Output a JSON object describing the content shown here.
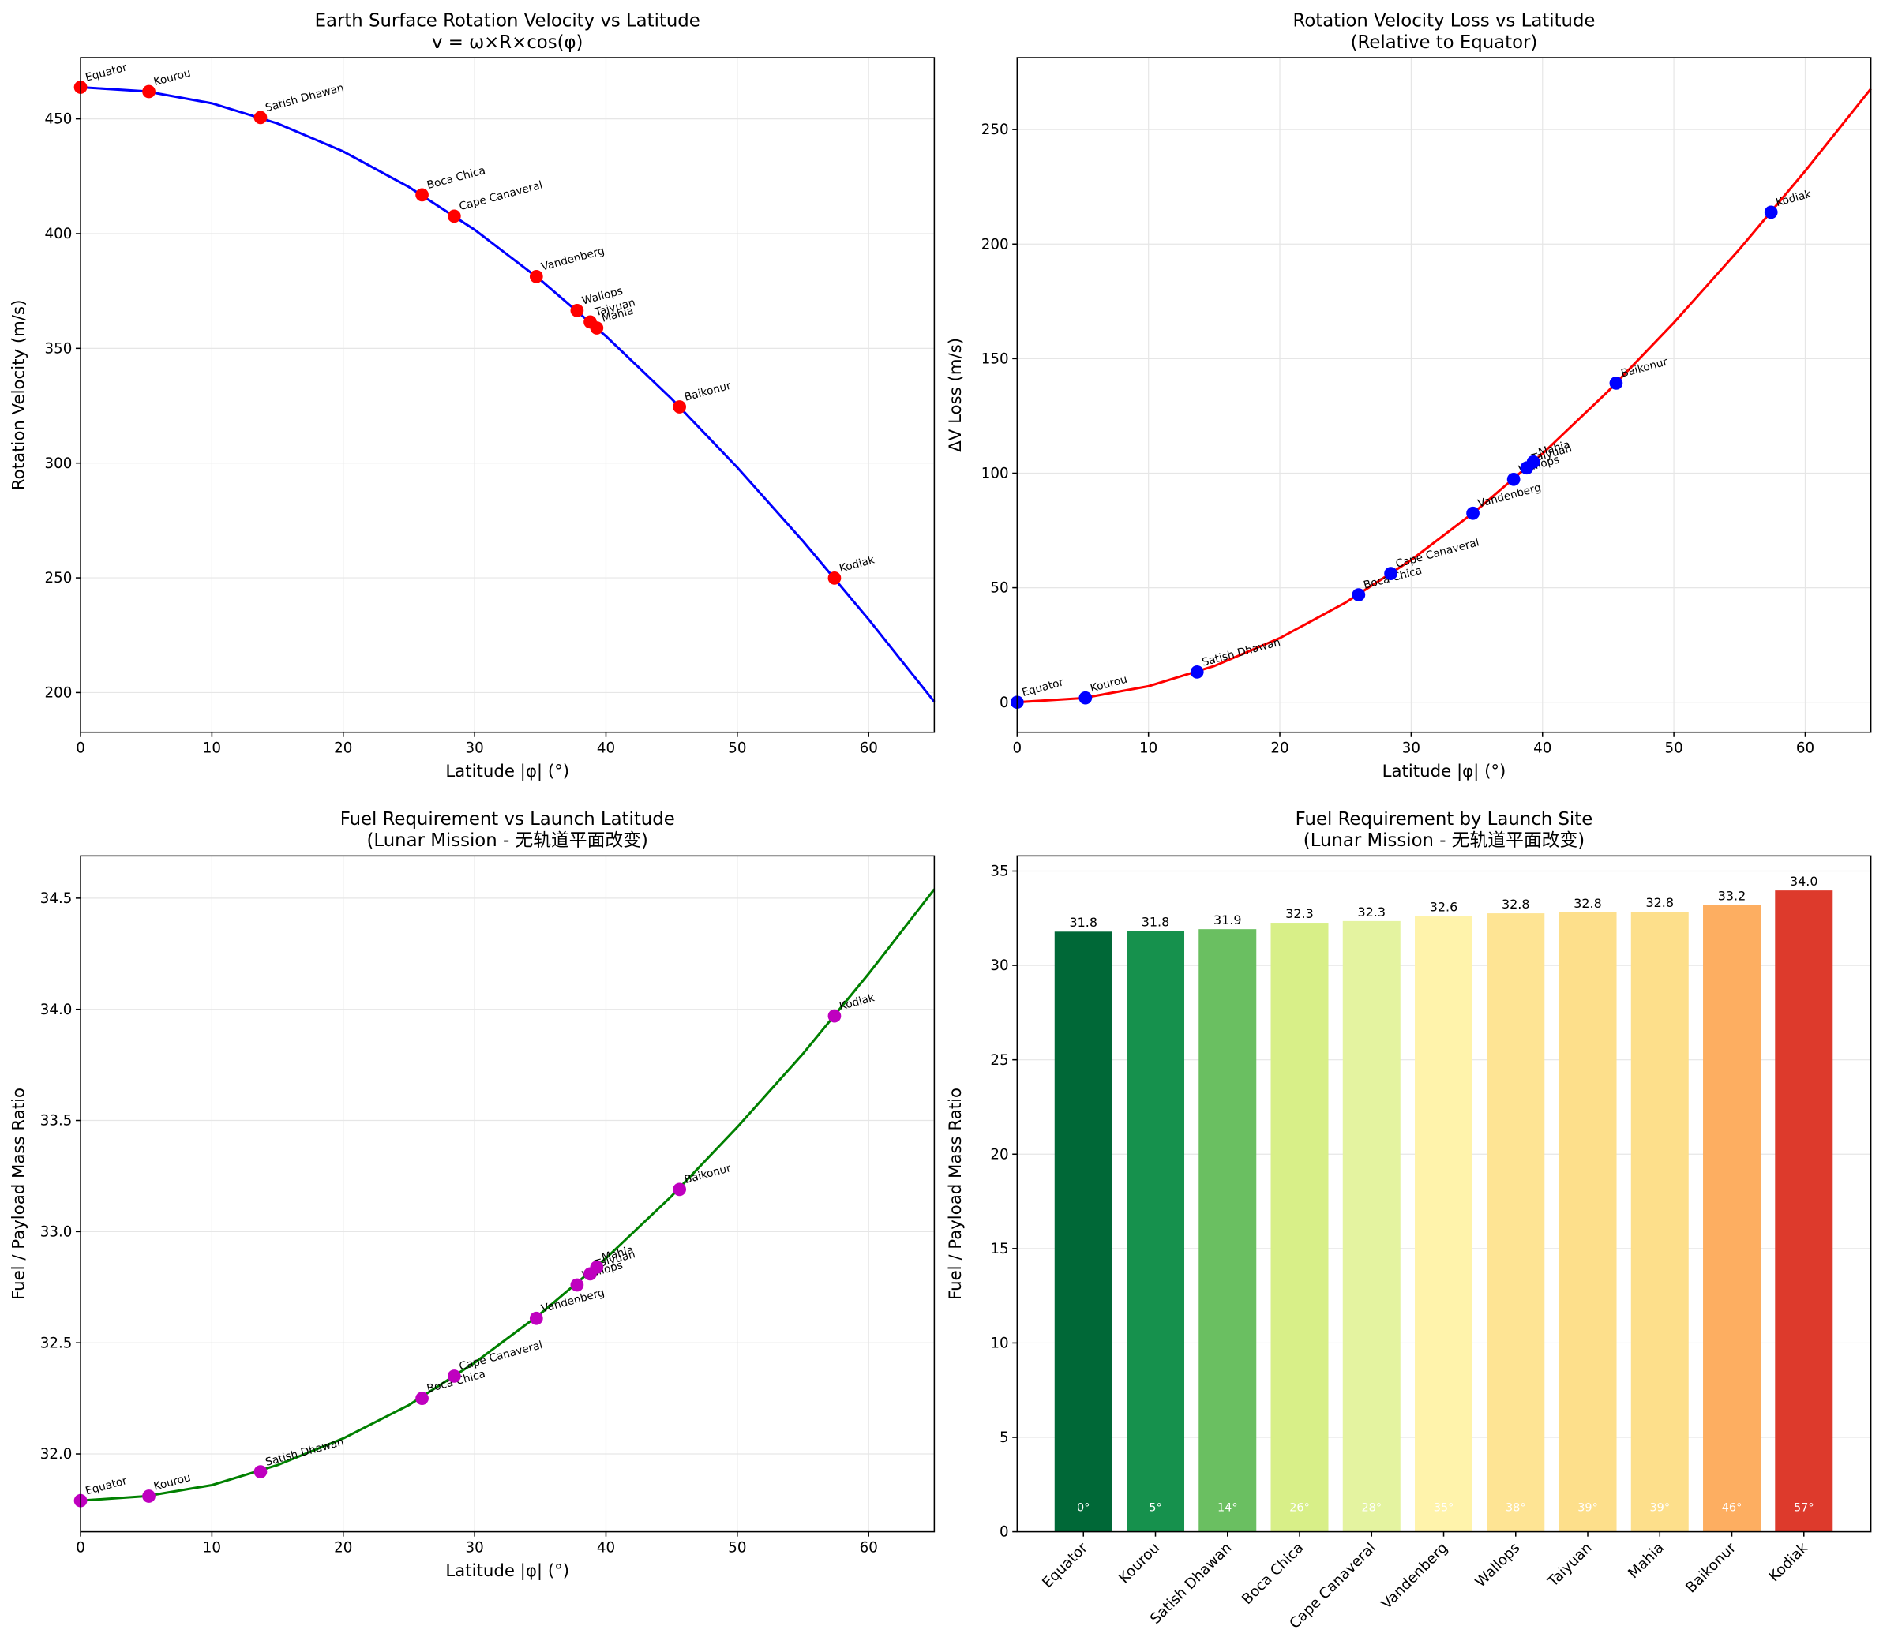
{
  "chart_data": [
    {
      "type": "line",
      "title": "Earth Surface Rotation Velocity vs Latitude",
      "subtitle": "v = ω×R×cos(φ)",
      "xlabel": "Latitude |φ| (°)",
      "ylabel": "Rotation Velocity (m/s)",
      "xlim": [
        0,
        65
      ],
      "ylim": [
        182.7,
        476.7
      ],
      "xticks": [
        0,
        10,
        20,
        30,
        40,
        50,
        60
      ],
      "yticks": [
        200,
        250,
        300,
        350,
        400,
        450
      ],
      "grid": true,
      "curve": {
        "color": "#0000ff",
        "x": [
          0,
          5,
          10,
          15,
          20,
          25,
          30,
          35,
          40,
          45,
          50,
          55,
          60,
          65
        ],
        "values": [
          463.8,
          462.0,
          456.8,
          448.0,
          435.8,
          420.3,
          401.7,
          379.9,
          355.3,
          328.0,
          298.1,
          266.0,
          231.9,
          196.0
        ]
      },
      "points": {
        "color": "#ff0000",
        "labels": [
          "Equator",
          "Kourou",
          "Satish Dhawan",
          "Boca Chica",
          "Cape Canaveral",
          "Vandenberg",
          "Wallops",
          "Taiyuan",
          "Mahia",
          "Baikonur",
          "Kodiak"
        ],
        "x": [
          0,
          5.2,
          13.7,
          26.0,
          28.45,
          34.7,
          37.8,
          38.8,
          39.3,
          45.6,
          57.4
        ],
        "values": [
          463.8,
          461.9,
          450.6,
          416.9,
          407.6,
          381.3,
          366.5,
          361.5,
          358.9,
          324.5,
          249.9
        ]
      }
    },
    {
      "type": "line",
      "title": "Rotation Velocity Loss vs Latitude",
      "subtitle": "(Relative to Equator)",
      "xlabel": "Latitude |φ| (°)",
      "ylabel": "ΔV Loss (m/s)",
      "xlim": [
        0,
        65
      ],
      "ylim": [
        -13.1,
        281.4
      ],
      "xticks": [
        0,
        10,
        20,
        30,
        40,
        50,
        60
      ],
      "yticks": [
        0,
        50,
        100,
        150,
        200,
        250
      ],
      "grid": true,
      "curve": {
        "color": "#ff0000",
        "x": [
          0,
          5,
          10,
          15,
          20,
          25,
          30,
          35,
          40,
          45,
          50,
          55,
          60,
          65
        ],
        "values": [
          0,
          1.8,
          7.0,
          15.8,
          28.0,
          43.5,
          62.1,
          83.9,
          108.5,
          135.8,
          165.7,
          197.8,
          231.9,
          267.8
        ]
      },
      "points": {
        "color": "#0000ff",
        "labels": [
          "Equator",
          "Kourou",
          "Satish Dhawan",
          "Boca Chica",
          "Cape Canaveral",
          "Vandenberg",
          "Wallops",
          "Taiyuan",
          "Mahia",
          "Baikonur",
          "Kodiak"
        ],
        "x": [
          0,
          5.2,
          13.7,
          26.0,
          28.45,
          34.7,
          37.8,
          38.8,
          39.3,
          45.6,
          57.4
        ],
        "values": [
          0,
          1.9,
          13.2,
          46.9,
          56.2,
          82.5,
          97.3,
          102.3,
          104.9,
          139.3,
          213.9
        ]
      }
    },
    {
      "type": "line",
      "title": "Fuel Requirement vs Launch Latitude",
      "subtitle": "(Lunar Mission - 无轨道平面改变)",
      "xlabel": "Latitude |φ| (°)",
      "ylabel": "Fuel / Payload Mass Ratio",
      "xlim": [
        0,
        65
      ],
      "ylim": [
        31.65,
        34.69
      ],
      "xticks": [
        0,
        10,
        20,
        30,
        40,
        50,
        60
      ],
      "yticks": [
        {
          "value": 32,
          "label": "32.0"
        },
        32.5,
        {
          "value": 33,
          "label": "33.0"
        },
        33.5,
        {
          "value": 34,
          "label": "34.0"
        },
        34.5
      ],
      "grid": true,
      "curve": {
        "color": "#008000",
        "x": [
          0,
          5,
          10,
          15,
          20,
          25,
          30,
          35,
          40,
          45,
          50,
          55,
          60,
          65
        ],
        "values": [
          31.79,
          31.81,
          31.86,
          31.95,
          32.07,
          32.22,
          32.41,
          32.63,
          32.88,
          33.16,
          33.47,
          33.8,
          34.16,
          34.54
        ]
      },
      "points": {
        "color": "#bf00bf",
        "labels": [
          "Equator",
          "Kourou",
          "Satish Dhawan",
          "Boca Chica",
          "Cape Canaveral",
          "Vandenberg",
          "Wallops",
          "Taiyuan",
          "Mahia",
          "Baikonur",
          "Kodiak"
        ],
        "x": [
          0,
          5.2,
          13.7,
          26.0,
          28.45,
          34.7,
          37.8,
          38.8,
          39.3,
          45.6,
          57.4
        ],
        "values": [
          31.79,
          31.81,
          31.92,
          32.25,
          32.35,
          32.61,
          32.76,
          32.81,
          32.84,
          33.19,
          33.97
        ]
      }
    },
    {
      "type": "bar",
      "title": "Fuel Requirement by Launch Site",
      "subtitle": "(Lunar Mission - 无轨道平面改变)",
      "ylabel": "Fuel / Payload Mass Ratio",
      "ylim": [
        0,
        35.8
      ],
      "yticks": [
        0,
        5,
        10,
        15,
        20,
        25,
        30,
        35
      ],
      "grid": true,
      "categories": [
        "Equator",
        "Kourou",
        "Satish Dhawan",
        "Boca Chica",
        "Cape Canaveral",
        "Vandenberg",
        "Wallops",
        "Taiyuan",
        "Mahia",
        "Baikonur",
        "Kodiak"
      ],
      "values": [
        31.79,
        31.81,
        31.92,
        32.26,
        32.35,
        32.61,
        32.76,
        32.81,
        32.84,
        33.19,
        33.97
      ],
      "value_labels": [
        "31.8",
        "31.8",
        "31.9",
        "32.3",
        "32.3",
        "32.6",
        "32.8",
        "32.8",
        "32.8",
        "33.2",
        "34.0"
      ],
      "lat_labels": [
        "0°",
        "5°",
        "14°",
        "26°",
        "28°",
        "35°",
        "38°",
        "39°",
        "39°",
        "46°",
        "57°"
      ],
      "colors": [
        "#006837",
        "#16914d",
        "#6abf61",
        "#d8ef88",
        "#e4f3a0",
        "#fff3ab",
        "#fee494",
        "#fddf8b",
        "#fddf8b",
        "#fdae61",
        "#dd3a2c"
      ]
    }
  ]
}
